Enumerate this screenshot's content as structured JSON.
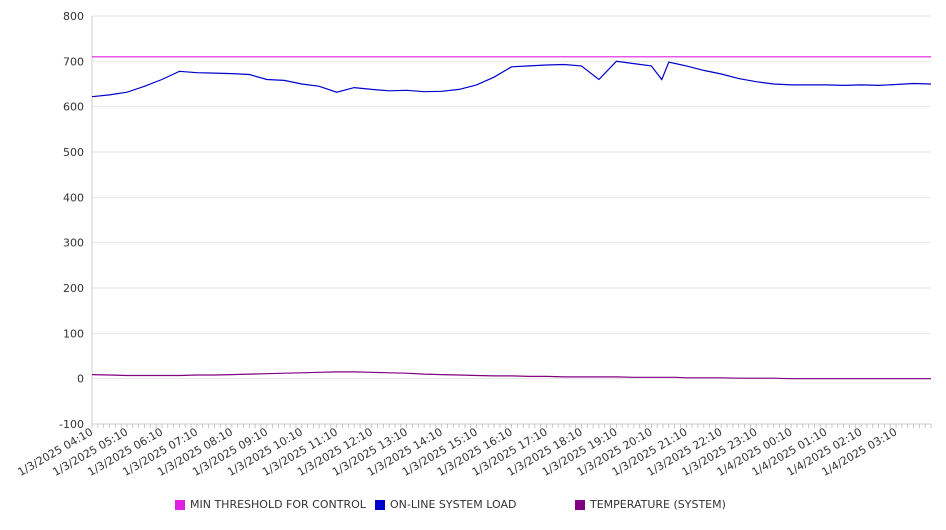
{
  "chart_data": {
    "type": "line",
    "title": "",
    "xlabel": "",
    "ylabel": "",
    "ylim": [
      -100,
      800
    ],
    "yticks": [
      -100,
      0,
      100,
      200,
      300,
      400,
      500,
      600,
      700,
      800
    ],
    "grid": true,
    "legend_position": "bottom",
    "x_tick_labels": [
      "1/3/2025 04:10",
      "1/3/2025 05:10",
      "1/3/2025 06:10",
      "1/3/2025 07:10",
      "1/3/2025 08:10",
      "1/3/2025 09:10",
      "1/3/2025 10:10",
      "1/3/2025 11:10",
      "1/3/2025 12:10",
      "1/3/2025 13:10",
      "1/3/2025 14:10",
      "1/3/2025 15:10",
      "1/3/2025 16:10",
      "1/3/2025 17:10",
      "1/3/2025 18:10",
      "1/3/2025 19:10",
      "1/3/2025 20:10",
      "1/3/2025 21:10",
      "1/3/2025 22:10",
      "1/3/2025 23:10",
      "1/4/2025 00:10",
      "1/4/2025 01:10",
      "1/4/2025 02:10",
      "1/4/2025 03:10"
    ],
    "x_hours": [
      0,
      0.5,
      1,
      1.5,
      2,
      2.5,
      3,
      3.5,
      4,
      4.5,
      5,
      5.5,
      6,
      6.5,
      7,
      7.5,
      8,
      8.5,
      9,
      9.5,
      10,
      10.5,
      11,
      11.5,
      12,
      12.5,
      13,
      13.5,
      14,
      14.5,
      15,
      15.5,
      16,
      16.3,
      16.5,
      16.7,
      17,
      17.5,
      18,
      18.5,
      19,
      19.5,
      20,
      20.5,
      21,
      21.5,
      22,
      22.5,
      23,
      23.5,
      24
    ],
    "series": [
      {
        "name": "MIN THRESHOLD FOR CONTROL",
        "color": "#e020e0",
        "values": [
          710,
          710,
          710,
          710,
          710,
          710,
          710,
          710,
          710,
          710,
          710,
          710,
          710,
          710,
          710,
          710,
          710,
          710,
          710,
          710,
          710,
          710,
          710,
          710,
          710,
          710,
          710,
          710,
          710,
          710,
          710,
          710,
          710,
          710,
          710,
          710,
          710,
          710,
          710,
          710,
          710,
          710,
          710,
          710,
          710,
          710,
          710,
          710,
          710,
          710,
          710
        ]
      },
      {
        "name": "ON-LINE SYSTEM LOAD",
        "color": "#0000cc",
        "values": [
          622,
          626,
          632,
          645,
          660,
          678,
          675,
          674,
          673,
          671,
          660,
          658,
          650,
          645,
          632,
          642,
          638,
          635,
          636,
          633,
          634,
          638,
          648,
          665,
          688,
          690,
          692,
          693,
          690,
          660,
          700,
          695,
          690,
          660,
          698,
          695,
          690,
          680,
          672,
          662,
          655,
          650,
          648,
          648,
          648,
          647,
          648,
          647,
          649,
          651,
          650
        ]
      },
      {
        "name": "TEMPERATURE (SYSTEM)",
        "color": "#800080",
        "values": [
          9,
          8,
          7,
          7,
          7,
          7,
          8,
          8,
          9,
          10,
          11,
          12,
          13,
          14,
          15,
          15,
          14,
          13,
          12,
          10,
          9,
          8,
          7,
          6,
          6,
          5,
          5,
          4,
          4,
          4,
          4,
          3,
          3,
          3,
          3,
          3,
          2,
          2,
          2,
          1,
          1,
          1,
          0,
          0,
          0,
          0,
          0,
          0,
          0,
          0,
          0
        ]
      }
    ]
  }
}
